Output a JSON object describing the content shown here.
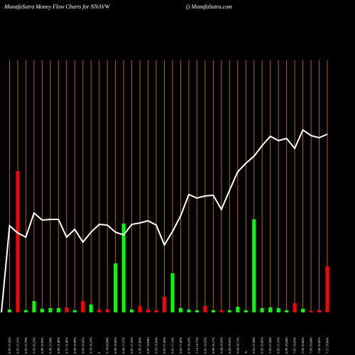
{
  "chart_data": {
    "type": "bar-line",
    "title": "MunafaSutra  Money Flow  Charts for NNAVW",
    "subtitle": "() MunafaSutra.com",
    "categories": [
      null,
      "6.92 17.62%",
      "6.91 17.21%",
      "6.95 17.79%",
      "6.93 16.23%",
      "6.89 12.83%",
      "6.90 17.04%",
      "6.89 11.89%",
      "6.71 11.45%",
      "6.89 10.99%",
      "6.90 15.92%",
      "6.70 18.16%",
      "6",
      "6.74 20.94%",
      "6.90 19.41%",
      "6.88 17.57%",
      "6.81 17.26%",
      "6.95 17.80%",
      "6.87 16.04%",
      "6.93 16.60%",
      "6.82 17.43%",
      "6.81 17.23%",
      "6.82 17.45%",
      "6.78 18.16%",
      "7.12 16.77%",
      "6.81 16.62%",
      "6.89 18.17%",
      "6.84 19.20%",
      "6.83 19.92%",
      "6.84 19.71%",
      "%",
      "6.95 17.29%",
      "6.92 16.85%",
      "7.05 17.04%",
      "6.95 17.15%",
      "6.90 19.64%",
      "7.07 19.95%",
      "7.02 19.86%",
      "7.05 19.64%",
      "7.06 19.47%",
      "7.17 19.96%"
    ],
    "series": [
      {
        "values": [
          null,
          4,
          199,
          3,
          16,
          5,
          6,
          6,
          7,
          3,
          16,
          11,
          4,
          4,
          69,
          125,
          4,
          9,
          4,
          3,
          22,
          55,
          6,
          4,
          3,
          9,
          3,
          3,
          3,
          8,
          3,
          131,
          6,
          7,
          6,
          3,
          13,
          5,
          2,
          3,
          65
        ],
        "colors": [
          null,
          "#00ff00",
          "#ff0000",
          "#00ff00",
          "#00ff00",
          "#00ff00",
          "#00ff00",
          "#00ff00",
          "#ff0000",
          "#00ff00",
          "#ff0000",
          "#00ff00",
          "#ff0000",
          "#ff0000",
          "#00ff00",
          "#00ff00",
          "#00ff00",
          "#ff0000",
          "#ff0000",
          "#ff0000",
          "#ff0000",
          "#00ff00",
          "#00ff00",
          "#00ff00",
          "#00ff00",
          "#ff0000",
          "#00ff00",
          "#ff0000",
          "#00ff00",
          "#00ff00",
          "#00ff00",
          "#00ff00",
          "#00ff00",
          "#00ff00",
          "#00ff00",
          "#00ff00",
          "#ff0000",
          "#00ff00",
          "#ff0000",
          "#ff0000",
          "#ff0000"
        ]
      },
      {
        "type": "line",
        "color": "#ffffff",
        "values": [
          0,
          122,
          112,
          106,
          140,
          130,
          131,
          131,
          106,
          117,
          99,
          113,
          124,
          123,
          113,
          109,
          124,
          126,
          129,
          123,
          95,
          114,
          136,
          166,
          161,
          164,
          165,
          145,
          172,
          198,
          210,
          220,
          235,
          248,
          242,
          245,
          231,
          257,
          249,
          246,
          251
        ]
      }
    ],
    "ylim": [
      0,
      355
    ],
    "grid": true,
    "grid_color": "#b8650a"
  }
}
